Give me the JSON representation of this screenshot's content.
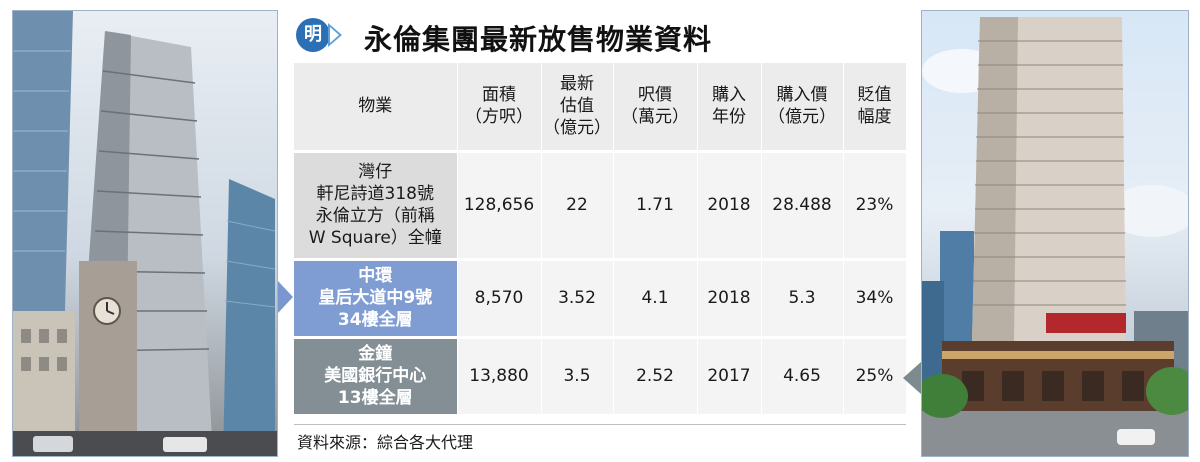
{
  "header": {
    "badge": "明",
    "title": "永倫集團最新放售物業資料"
  },
  "table": {
    "columns": [
      [
        "物業"
      ],
      [
        "面積",
        "（方呎）"
      ],
      [
        "最新",
        "估值",
        "（億元）"
      ],
      [
        "呎價",
        "（萬元）"
      ],
      [
        "購入",
        "年份"
      ],
      [
        "購入價",
        "（億元）"
      ],
      [
        "貶值",
        "幅度"
      ]
    ],
    "rows": [
      {
        "property": [
          "灣仔",
          "軒尼詩道318號",
          "永倫立方（前稱",
          "W Square）全幢"
        ],
        "area": "128,656",
        "valuation": "22",
        "psf": "1.71",
        "year": "2018",
        "price": "28.488",
        "depreciation": "23%"
      },
      {
        "property": [
          "中環",
          "皇后大道中9號",
          "34樓全層"
        ],
        "area": "8,570",
        "valuation": "3.52",
        "psf": "4.1",
        "year": "2018",
        "price": "5.3",
        "depreciation": "34%"
      },
      {
        "property": [
          "金鐘",
          "美國銀行中心",
          "13樓全層"
        ],
        "area": "13,880",
        "valuation": "3.5",
        "psf": "2.52",
        "year": "2017",
        "price": "4.65",
        "depreciation": "25%"
      }
    ]
  },
  "source": "資料來源：綜合各大代理",
  "colors": {
    "badge": "#2d6fb4",
    "header_row": "#ececec",
    "row1_property": "#7f9dd3",
    "row2_property": "#838f95",
    "row0_property": "#dcdcdc"
  }
}
